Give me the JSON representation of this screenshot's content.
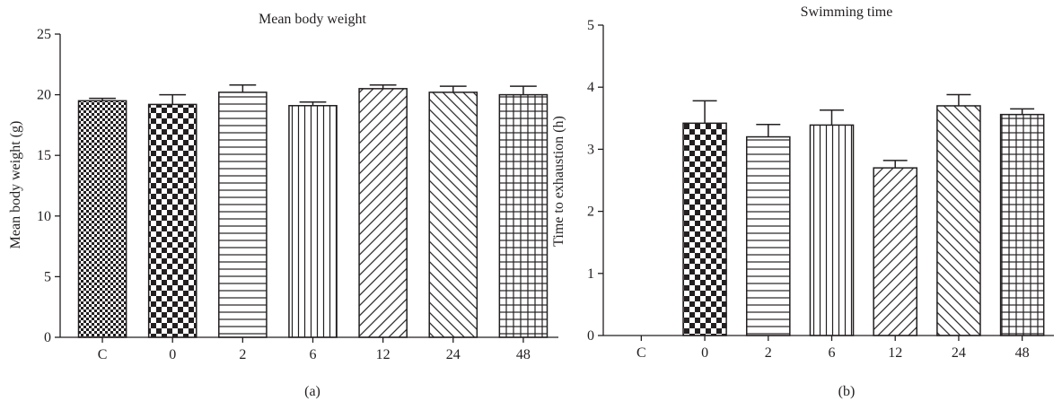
{
  "chart_data": [
    {
      "type": "bar",
      "panel": "(a)",
      "title": "Mean body weight",
      "xlabel": "",
      "ylabel": "Mean body weight (g)",
      "categories": [
        "C",
        "0",
        "2",
        "6",
        "12",
        "24",
        "48"
      ],
      "values": [
        19.5,
        19.2,
        20.2,
        19.1,
        20.5,
        20.2,
        20.0
      ],
      "errors": [
        0.2,
        0.8,
        0.6,
        0.3,
        0.3,
        0.5,
        0.7
      ],
      "patterns": [
        "fine-checker",
        "checker",
        "horizontal",
        "vertical",
        "diagonal-up",
        "diagonal-down",
        "grid"
      ],
      "ylim": [
        0,
        25
      ],
      "yticks": [
        0,
        5,
        10,
        15,
        20,
        25
      ],
      "grid": false
    },
    {
      "type": "bar",
      "panel": "(b)",
      "title": "Swimming time",
      "xlabel": "",
      "ylabel": "Time to exhaustion (h)",
      "categories": [
        "C",
        "0",
        "2",
        "6",
        "12",
        "24",
        "48"
      ],
      "values": [
        0,
        3.42,
        3.2,
        3.39,
        2.7,
        3.7,
        3.56
      ],
      "errors": [
        0,
        0.36,
        0.2,
        0.24,
        0.12,
        0.18,
        0.09
      ],
      "patterns": [
        "none",
        "checker",
        "horizontal",
        "vertical",
        "diagonal-up",
        "diagonal-down",
        "grid"
      ],
      "ylim": [
        0,
        5
      ],
      "yticks": [
        0,
        1,
        2,
        3,
        4,
        5
      ],
      "grid": false
    }
  ]
}
